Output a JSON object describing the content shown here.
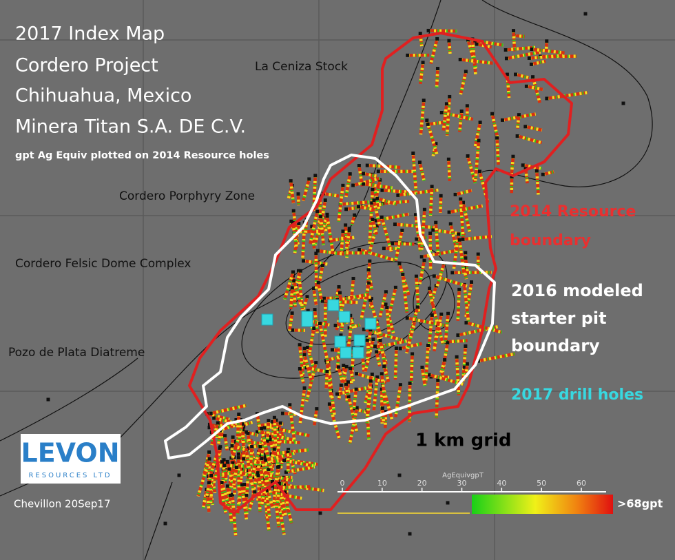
{
  "title_lines": [
    "2017 Index Map",
    "Cordero Project",
    "Chihuahua, Mexico",
    "Minera Titan S.A. DE C.V."
  ],
  "subtitle": "gpt Ag Equiv plotted on 2014 Resource holes",
  "map_labels": [
    "La Ceniza Stock",
    "Cordero Porphyry Zone",
    "Cordero Felsic Dome Complex",
    "Pozo de Plata Diatreme"
  ],
  "resource_boundary_label": [
    "2014 Resource",
    "boundary"
  ],
  "pit_boundary_label": [
    "2016 modeled",
    "starter pit",
    "boundary"
  ],
  "drill_holes_label": "2017 drill holes",
  "grid_label": "1 km grid",
  "logo": {
    "name": "LEVON",
    "tagline": "RESOURCES LTD"
  },
  "credit": "Chevillon 20Sep17",
  "legend": {
    "title": "AgEquivgpT",
    "ticks": [
      0,
      10,
      20,
      30,
      40,
      50,
      60
    ],
    "max_label": ">68gpt"
  }
}
